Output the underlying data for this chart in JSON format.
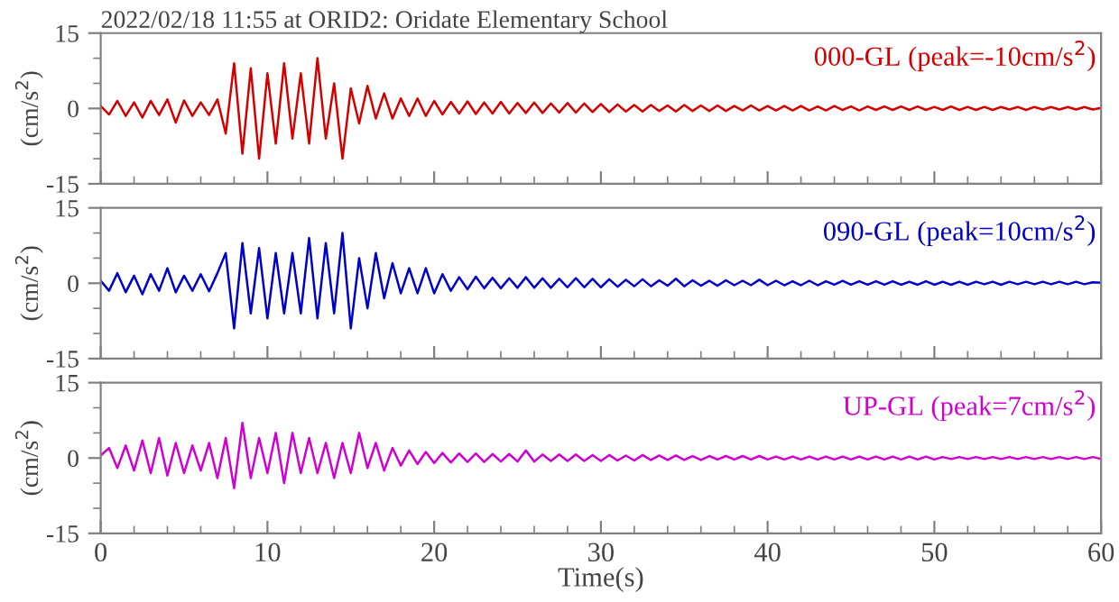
{
  "chart_data": [
    {
      "type": "line",
      "title": "2022/02/18 11:55 at ORID2: Oridate Elementary School",
      "ylabel": "(cm/s$^{2}$)",
      "xlim": [
        0,
        60
      ],
      "ylim": [
        -15,
        15
      ],
      "yticks": [
        -15,
        0,
        15
      ],
      "xticks": [
        0,
        10,
        20,
        30,
        40,
        50,
        60
      ],
      "tick_labels": "y",
      "legend": false,
      "grid": false,
      "x": [
        0,
        0.5,
        1,
        1.5,
        2,
        2.5,
        3,
        3.5,
        4,
        4.5,
        5,
        5.5,
        6,
        6.5,
        7,
        7.5,
        8,
        8.5,
        9,
        9.5,
        10,
        10.5,
        11,
        11.5,
        12,
        12.5,
        13,
        13.5,
        14,
        14.5,
        15,
        15.5,
        16,
        16.5,
        17,
        17.5,
        18,
        18.5,
        19,
        19.5,
        20,
        20.5,
        21,
        21.5,
        22,
        22.5,
        23,
        23.5,
        24,
        24.5,
        25,
        25.5,
        26,
        26.5,
        27,
        27.5,
        28,
        28.5,
        29,
        29.5,
        30,
        30.5,
        31,
        31.5,
        32,
        32.5,
        33,
        33.5,
        34,
        34.5,
        35,
        35.5,
        36,
        36.5,
        37,
        37.5,
        38,
        38.5,
        39,
        39.5,
        40,
        40.5,
        41,
        41.5,
        42,
        42.5,
        43,
        43.5,
        44,
        44.5,
        45,
        45.5,
        46,
        46.5,
        47,
        47.5,
        48,
        48.5,
        49,
        49.5,
        50,
        50.5,
        51,
        51.5,
        52,
        52.5,
        53,
        53.5,
        54,
        54.5,
        55,
        55.5,
        56,
        56.5,
        57,
        57.5,
        58,
        58.5,
        59,
        59.5,
        60
      ],
      "series": [
        {
          "name": "000-GL (peak=-10cm/s$^{2}$)",
          "color": "#d40000",
          "values": [
            0.5,
            -1.2,
            1.5,
            -1.5,
            1.2,
            -1.8,
            1.5,
            -1.3,
            1.8,
            -2.8,
            1.6,
            -1.5,
            1.2,
            -1.3,
            1.8,
            -5,
            9,
            -9,
            8,
            -10,
            7,
            -7,
            9,
            -6,
            7,
            -7,
            10,
            -6,
            5,
            -10,
            4,
            -3,
            4.5,
            -2,
            3,
            -2,
            2,
            -1.5,
            2,
            -1.5,
            1.5,
            -1.2,
            1.3,
            -1.0,
            1.4,
            -1.1,
            1.2,
            -1.0,
            1.3,
            -1.0,
            1.1,
            -0.9,
            1.2,
            -0.9,
            1.0,
            -0.8,
            1.1,
            -0.8,
            1.0,
            -0.7,
            0.9,
            -0.7,
            0.8,
            -0.6,
            0.7,
            -0.6,
            0.7,
            -0.5,
            0.6,
            -0.6,
            0.7,
            -0.5,
            0.6,
            -0.5,
            0.6,
            -0.5,
            0.5,
            -0.4,
            0.6,
            -0.4,
            0.5,
            -0.4,
            0.5,
            -0.4,
            0.5,
            -0.4,
            0.4,
            -0.4,
            0.5,
            -0.3,
            0.4,
            -0.4,
            0.4,
            -0.3,
            0.4,
            -0.3,
            0.4,
            -0.3,
            0.4,
            -0.3,
            0.3,
            -0.3,
            0.4,
            -0.3,
            0.3,
            -0.3,
            0.3,
            -0.3,
            0.3,
            -0.2,
            0.3,
            -0.3,
            0.3,
            -0.2,
            0.3,
            -0.2,
            0.3,
            -0.2,
            0.3,
            -0.2,
            0.1
          ]
        }
      ]
    },
    {
      "type": "line",
      "ylabel": "(cm/s$^{2}$)",
      "xlim": [
        0,
        60
      ],
      "ylim": [
        -15,
        15
      ],
      "yticks": [
        -15,
        0,
        15
      ],
      "xticks": [
        0,
        10,
        20,
        30,
        40,
        50,
        60
      ],
      "tick_labels": "y",
      "legend": false,
      "grid": false,
      "x": [
        0,
        0.5,
        1,
        1.5,
        2,
        2.5,
        3,
        3.5,
        4,
        4.5,
        5,
        5.5,
        6,
        6.5,
        7,
        7.5,
        8,
        8.5,
        9,
        9.5,
        10,
        10.5,
        11,
        11.5,
        12,
        12.5,
        13,
        13.5,
        14,
        14.5,
        15,
        15.5,
        16,
        16.5,
        17,
        17.5,
        18,
        18.5,
        19,
        19.5,
        20,
        20.5,
        21,
        21.5,
        22,
        22.5,
        23,
        23.5,
        24,
        24.5,
        25,
        25.5,
        26,
        26.5,
        27,
        27.5,
        28,
        28.5,
        29,
        29.5,
        30,
        30.5,
        31,
        31.5,
        32,
        32.5,
        33,
        33.5,
        34,
        34.5,
        35,
        35.5,
        36,
        36.5,
        37,
        37.5,
        38,
        38.5,
        39,
        39.5,
        40,
        40.5,
        41,
        41.5,
        42,
        42.5,
        43,
        43.5,
        44,
        44.5,
        45,
        45.5,
        46,
        46.5,
        47,
        47.5,
        48,
        48.5,
        49,
        49.5,
        50,
        50.5,
        51,
        51.5,
        52,
        52.5,
        53,
        53.5,
        54,
        54.5,
        55,
        55.5,
        56,
        56.5,
        57,
        57.5,
        58,
        58.5,
        59,
        59.5,
        60
      ],
      "series": [
        {
          "name": "090-GL (peak=10cm/s$^{2}$)",
          "color": "#0000c8",
          "values": [
            0.5,
            -1.5,
            2,
            -1.8,
            1.5,
            -2.2,
            1.8,
            -1.5,
            3,
            -1.8,
            1.5,
            -1.5,
            1.8,
            -1.6,
            2,
            6,
            -9,
            8,
            -6,
            7,
            -7,
            6,
            -6,
            6,
            -6,
            9,
            -7,
            8,
            -6,
            10,
            -9,
            5,
            -5,
            6,
            -3,
            4,
            -2,
            3,
            -2,
            3,
            -2,
            1.8,
            -1.5,
            1.2,
            -1.2,
            1.3,
            -1.0,
            1.1,
            -1.0,
            1.0,
            -0.9,
            1.2,
            -0.9,
            1.0,
            -0.9,
            0.9,
            -0.8,
            1.0,
            -0.8,
            0.9,
            -0.8,
            0.8,
            -0.7,
            0.7,
            -0.6,
            0.8,
            -0.6,
            0.6,
            -0.5,
            0.9,
            -0.6,
            0.6,
            -0.5,
            0.5,
            -0.5,
            0.6,
            -0.4,
            0.5,
            -0.4,
            0.7,
            -0.4,
            0.5,
            -0.4,
            0.4,
            -0.4,
            0.5,
            -0.4,
            0.4,
            -0.3,
            0.5,
            -0.3,
            0.4,
            -0.3,
            0.4,
            -0.3,
            0.4,
            -0.3,
            0.3,
            -0.3,
            0.4,
            -0.3,
            0.3,
            -0.3,
            0.3,
            -0.3,
            0.3,
            -0.2,
            0.3,
            -0.3,
            0.3,
            -0.2,
            0.3,
            -0.2,
            0.3,
            -0.2,
            0.3,
            -0.2,
            0.3,
            -0.2,
            0.2,
            0.1
          ]
        }
      ]
    },
    {
      "type": "line",
      "ylabel": "(cm/s$^{2}$)",
      "xlabel": "Time(s)",
      "xlim": [
        0,
        60
      ],
      "ylim": [
        -15,
        15
      ],
      "yticks": [
        -15,
        0,
        15
      ],
      "xticks": [
        0,
        10,
        20,
        30,
        40,
        50,
        60
      ],
      "legend": false,
      "grid": false,
      "x": [
        0,
        0.5,
        1,
        1.5,
        2,
        2.5,
        3,
        3.5,
        4,
        4.5,
        5,
        5.5,
        6,
        6.5,
        7,
        7.5,
        8,
        8.5,
        9,
        9.5,
        10,
        10.5,
        11,
        11.5,
        12,
        12.5,
        13,
        13.5,
        14,
        14.5,
        15,
        15.5,
        16,
        16.5,
        17,
        17.5,
        18,
        18.5,
        19,
        19.5,
        20,
        20.5,
        21,
        21.5,
        22,
        22.5,
        23,
        23.5,
        24,
        24.5,
        25,
        25.5,
        26,
        26.5,
        27,
        27.5,
        28,
        28.5,
        29,
        29.5,
        30,
        30.5,
        31,
        31.5,
        32,
        32.5,
        33,
        33.5,
        34,
        34.5,
        35,
        35.5,
        36,
        36.5,
        37,
        37.5,
        38,
        38.5,
        39,
        39.5,
        40,
        40.5,
        41,
        41.5,
        42,
        42.5,
        43,
        43.5,
        44,
        44.5,
        45,
        45.5,
        46,
        46.5,
        47,
        47.5,
        48,
        48.5,
        49,
        49.5,
        50,
        50.5,
        51,
        51.5,
        52,
        52.5,
        53,
        53.5,
        54,
        54.5,
        55,
        55.5,
        56,
        56.5,
        57,
        57.5,
        58,
        58.5,
        59,
        59.5,
        60
      ],
      "series": [
        {
          "name": "UP-GL (peak=7cm/s$^{2}$)",
          "color": "#d000d0",
          "values": [
            0.5,
            2,
            -2,
            2.5,
            -2.5,
            3.5,
            -3,
            4,
            -3.5,
            3,
            -3,
            2.5,
            -2.5,
            3,
            -4,
            4,
            -6,
            7,
            -4,
            4,
            -3,
            5,
            -5,
            5,
            -3,
            4,
            -3,
            3,
            -4,
            3,
            -3,
            5,
            -2,
            3,
            -2.5,
            2,
            -1.5,
            1.5,
            -1.2,
            1.2,
            -1.0,
            1.0,
            -0.9,
            0.9,
            -0.8,
            0.9,
            -0.8,
            0.8,
            -0.7,
            0.8,
            -0.7,
            1.5,
            -0.7,
            0.7,
            -0.6,
            0.7,
            -0.6,
            0.7,
            -0.6,
            0.6,
            -0.6,
            0.6,
            -0.5,
            0.5,
            -0.5,
            0.6,
            -0.4,
            0.5,
            -0.4,
            0.5,
            -0.4,
            0.4,
            -0.4,
            0.4,
            -0.3,
            0.4,
            -0.3,
            0.4,
            -0.3,
            0.4,
            -0.3,
            0.3,
            -0.3,
            0.3,
            -0.3,
            0.3,
            -0.3,
            0.3,
            -0.3,
            0.3,
            -0.3,
            0.3,
            -0.3,
            0.3,
            -0.3,
            0.3,
            -0.3,
            0.3,
            -0.3,
            0.3,
            -0.3,
            0.2,
            -0.2,
            0.2,
            -0.2,
            0.2,
            -0.2,
            0.2,
            -0.2,
            0.2,
            -0.2,
            0.2,
            -0.2,
            0.2,
            -0.2,
            0.2,
            -0.2,
            0.2,
            -0.2,
            0.2,
            -0.2
          ]
        }
      ]
    }
  ]
}
